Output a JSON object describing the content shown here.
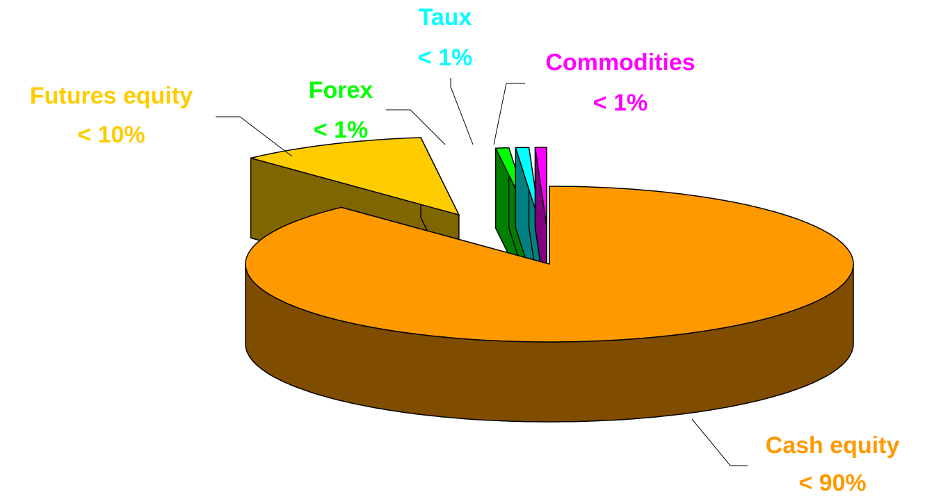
{
  "chart_data": {
    "type": "pie3d",
    "categories": [
      "Cash equity",
      "Futures equity",
      "Forex",
      "Taux",
      "Commodities"
    ],
    "values": [
      88,
      10,
      0.7,
      0.7,
      0.6
    ],
    "value_labels": [
      "< 90%",
      "< 10%",
      "< 1%",
      "< 1%",
      "< 1%"
    ],
    "colors": [
      "#ff9900",
      "#ffcc00",
      "#00ff00",
      "#00ffff",
      "#ff00ff"
    ],
    "side_colors": [
      "#804c00",
      "#806600",
      "#008000",
      "#008080",
      "#800080"
    ]
  }
}
